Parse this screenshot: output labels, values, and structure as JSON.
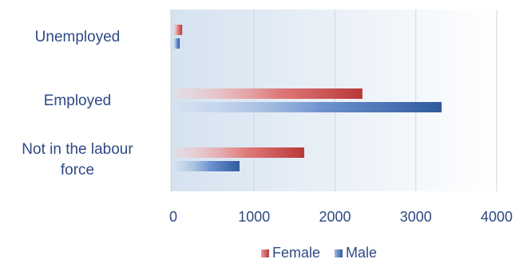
{
  "chart_data": {
    "type": "bar",
    "orientation": "horizontal",
    "title": "",
    "xlabel": "",
    "ylabel": "",
    "categories": [
      [
        "Unemployed"
      ],
      [
        "Employed"
      ],
      [
        "Not in the labour",
        "force"
      ]
    ],
    "series": [
      {
        "name": "Female",
        "color": "#c94a4a",
        "values": [
          110,
          2340,
          1620
        ]
      },
      {
        "name": "Male",
        "color": "#3e6db5",
        "values": [
          80,
          3320,
          820
        ]
      }
    ],
    "xlim": [
      0,
      4000
    ],
    "xticks": [
      "0",
      "1000",
      "2000",
      "3000",
      "4000"
    ],
    "grid": true,
    "legend_position": "bottom"
  }
}
